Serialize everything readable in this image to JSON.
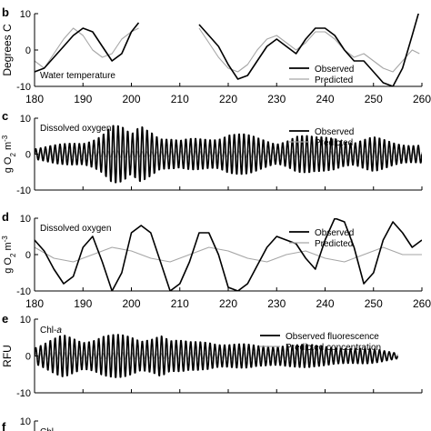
{
  "colors": {
    "observed": "#000000",
    "predicted": "#a6a6a6",
    "axis": "#000000",
    "background": "#ffffff"
  },
  "chart_data": [
    {
      "panel": "b",
      "type": "line",
      "annotation": "Water temperature",
      "ylabel": "Degrees C",
      "xlim": [
        180,
        260
      ],
      "ylim": [
        -10,
        10
      ],
      "x_ticks": [
        180,
        190,
        200,
        210,
        220,
        230,
        240,
        250,
        260
      ],
      "y_ticks": [
        -10,
        0,
        10
      ],
      "legend": "bottom-right",
      "series": [
        {
          "name": "Observed",
          "segments": [
            {
              "x": [
                180,
                182,
                184,
                186,
                188,
                190,
                192,
                194,
                196,
                198,
                200,
                201.5
              ],
              "y": [
                -6,
                -5,
                -2,
                1,
                4,
                6,
                5,
                1,
                -3,
                -1,
                5,
                7.5
              ]
            },
            {
              "x": [
                214,
                216,
                218,
                220,
                222,
                224,
                226,
                228,
                230,
                232,
                234,
                236,
                238,
                240,
                242,
                244,
                246,
                248,
                250,
                252,
                254,
                256,
                258,
                259.5
              ],
              "y": [
                7,
                4,
                1,
                -4,
                -8,
                -7,
                -3,
                1,
                3,
                1,
                -1,
                3,
                6,
                6,
                4,
                0,
                -3,
                -3,
                -6,
                -9,
                -10,
                -5,
                4,
                11
              ]
            }
          ]
        },
        {
          "name": "Predicted",
          "segments": [
            {
              "x": [
                180,
                182,
                184,
                186,
                188,
                190,
                192,
                194,
                196,
                198,
                200,
                201.5
              ],
              "y": [
                -3,
                -5,
                -1,
                3,
                6,
                4,
                0,
                -2,
                -1,
                3,
                5,
                6
              ]
            },
            {
              "x": [
                214,
                216,
                218,
                220,
                222,
                224,
                226,
                228,
                230,
                232,
                234,
                236,
                238,
                240,
                242,
                244,
                246,
                248,
                250,
                252,
                254,
                256,
                258,
                259.5
              ],
              "y": [
                6,
                2,
                -2,
                -5,
                -6,
                -4,
                0,
                3,
                4,
                2,
                0,
                2,
                5,
                5,
                3,
                0,
                -2,
                -1,
                -3,
                -5,
                -6,
                -3,
                0,
                -1
              ]
            }
          ]
        }
      ]
    },
    {
      "panel": "c",
      "type": "line",
      "annotation": "Dissolved oxygen",
      "ylabel": "g O2 m-3",
      "ylabel_parts": {
        "pre": "g O",
        "sub": "2",
        "mid": " m",
        "sup": "-3"
      },
      "xlim": [
        180,
        260
      ],
      "ylim": [
        -10,
        10
      ],
      "y_ticks": [
        -10,
        0,
        10
      ],
      "legend": "top-right",
      "series": [
        {
          "name": "Observed",
          "x_start": 180,
          "x_end": 260,
          "base_period": 1,
          "amplitude_envelope": [
            [
              180,
              2
            ],
            [
              186,
              3
            ],
            [
              190,
              4
            ],
            [
              194,
              7
            ],
            [
              196,
              9
            ],
            [
              198,
              8
            ],
            [
              200,
              6
            ],
            [
              202,
              10
            ],
            [
              204,
              9
            ],
            [
              206,
              6
            ],
            [
              210,
              4
            ],
            [
              214,
              5
            ],
            [
              218,
              6
            ],
            [
              220,
              7
            ],
            [
              226,
              5
            ],
            [
              230,
              4
            ],
            [
              234,
              6
            ],
            [
              238,
              5
            ],
            [
              242,
              6
            ],
            [
              246,
              4
            ],
            [
              250,
              5
            ],
            [
              254,
              4
            ],
            [
              260,
              3
            ]
          ]
        },
        {
          "name": "Predicted",
          "x_start": 180,
          "x_end": 260,
          "base_period": 1,
          "amplitude_envelope": [
            [
              180,
              1
            ],
            [
              260,
              1
            ]
          ]
        }
      ]
    },
    {
      "panel": "d",
      "type": "line",
      "annotation": "Dissolved oxygen",
      "ylabel": "g O2 m-3",
      "ylabel_parts": {
        "pre": "g O",
        "sub": "2",
        "mid": " m",
        "sup": "-3"
      },
      "xlim": [
        180,
        260
      ],
      "ylim": [
        -10,
        10
      ],
      "x_ticks": [
        180,
        190,
        200,
        210,
        220,
        230,
        240,
        250,
        260
      ],
      "y_ticks": [
        -10,
        0,
        10
      ],
      "legend": "top-right",
      "series": [
        {
          "name": "Observed",
          "x": [
            180,
            182,
            184,
            186,
            188,
            190,
            192,
            194,
            196,
            198,
            200,
            202,
            204,
            206,
            208,
            210,
            212,
            214,
            216,
            218,
            220,
            222,
            224,
            226,
            228,
            230,
            232,
            234,
            236,
            238,
            240,
            242,
            244,
            246,
            248,
            250,
            252,
            254,
            256,
            258,
            260
          ],
          "y": [
            4,
            1,
            -4,
            -8,
            -6,
            2,
            5,
            -2,
            -10,
            -5,
            6,
            8,
            6,
            -2,
            -10,
            -8,
            -2,
            6,
            6,
            0,
            -9,
            -10,
            -8,
            -3,
            2,
            5,
            4,
            3,
            -1,
            -4,
            4,
            10,
            9,
            2,
            -8,
            -5,
            4,
            9,
            6,
            2,
            4
          ]
        },
        {
          "name": "Predicted",
          "x": [
            180,
            184,
            188,
            192,
            196,
            200,
            204,
            208,
            212,
            216,
            220,
            224,
            228,
            232,
            236,
            240,
            244,
            248,
            252,
            256,
            260
          ],
          "y": [
            2,
            -1,
            -2,
            0,
            2,
            1,
            -1,
            -2,
            0,
            2,
            1,
            -1,
            -2,
            0,
            1,
            -1,
            -2,
            0,
            2,
            0,
            0
          ]
        }
      ]
    },
    {
      "panel": "e",
      "type": "line",
      "annotation": "Chl-a",
      "annotation_parts": {
        "pre": "Chl-",
        "italic": "a"
      },
      "ylabel": "RFU",
      "xlim": [
        180,
        255
      ],
      "ylim": [
        -10,
        10
      ],
      "y_ticks": [
        -10,
        0,
        10
      ],
      "legend": "top-right",
      "series": [
        {
          "name": "Observed fluorescence",
          "x_start": 180,
          "x_end": 255,
          "base_period": 1,
          "amplitude_envelope": [
            [
              180,
              3
            ],
            [
              186,
              6
            ],
            [
              190,
              5
            ],
            [
              194,
              7
            ],
            [
              198,
              6
            ],
            [
              202,
              5
            ],
            [
              206,
              8
            ],
            [
              208,
              5
            ],
            [
              212,
              4
            ],
            [
              216,
              5
            ],
            [
              220,
              4
            ],
            [
              226,
              3
            ],
            [
              232,
              4
            ],
            [
              238,
              3
            ],
            [
              244,
              3
            ],
            [
              250,
              2
            ],
            [
              255,
              1
            ]
          ]
        },
        {
          "name": "Predicted concentration",
          "x_start": 180,
          "x_end": 255,
          "base_period": 1,
          "amplitude_envelope": [
            [
              180,
              1
            ],
            [
              244,
              1
            ],
            [
              246,
              2
            ],
            [
              248,
              1
            ],
            [
              255,
              1
            ]
          ]
        }
      ]
    },
    {
      "panel": "f",
      "type": "line",
      "annotation": "Chl-",
      "ylim_top": 10,
      "y_ticks": [
        10
      ]
    }
  ],
  "panel_letters": {
    "b": "b",
    "c": "c",
    "d": "d",
    "e": "e",
    "f": "f"
  }
}
